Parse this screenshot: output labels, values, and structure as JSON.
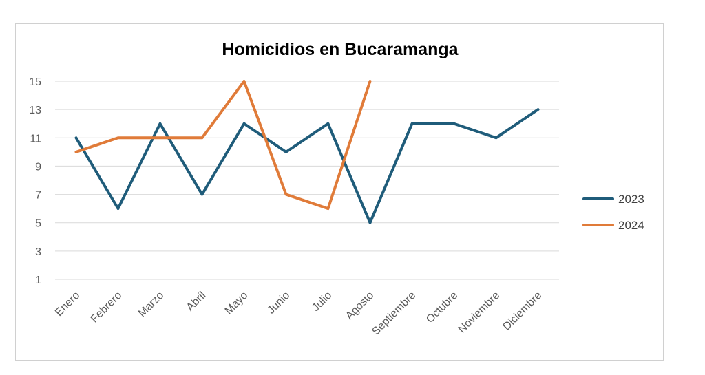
{
  "chart_data": {
    "type": "line",
    "title": "Homicidios en Bucaramanga",
    "xlabel": "",
    "ylabel": "",
    "categories": [
      "Enero",
      "Febrero",
      "Marzo",
      "Abril",
      "Mayo",
      "Junio",
      "Julio",
      "Agosto",
      "Septiembre",
      "Octubre",
      "Noviembre",
      "Diciembre"
    ],
    "y_ticks": [
      1,
      3,
      5,
      7,
      9,
      11,
      13,
      15
    ],
    "ylim": [
      1,
      15
    ],
    "grid": true,
    "legend_position": "right",
    "series": [
      {
        "name": "2023",
        "color": "#1f5c7a",
        "values": [
          11,
          6,
          12,
          7,
          12,
          10,
          12,
          5,
          12,
          12,
          11,
          13
        ]
      },
      {
        "name": "2024",
        "color": "#e07b39",
        "values": [
          10,
          11,
          11,
          11,
          15,
          7,
          6,
          15,
          null,
          null,
          null,
          null
        ]
      }
    ]
  }
}
